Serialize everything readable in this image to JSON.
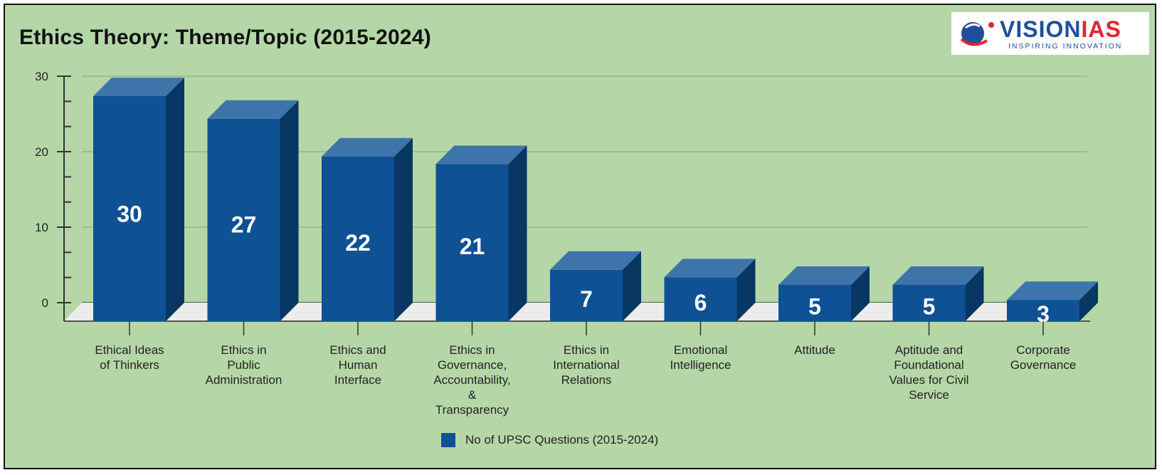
{
  "chart_data": {
    "type": "bar",
    "style": "3d-column",
    "title": "Ethics Theory: Theme/Topic (2015-2024)",
    "categories": [
      "Ethical Ideas of Thinkers",
      "Ethics in Public Administration",
      "Ethics and Human Interface",
      "Ethics in Governance, Accountability, & Transparency",
      "Ethics in International Relations",
      "Emotional Intelligence",
      "Attitude",
      "Aptitude and Foundational Values for Civil Service",
      "Corporate Governance"
    ],
    "category_lines": [
      [
        "Ethical Ideas",
        "of Thinkers"
      ],
      [
        "Ethics in",
        "Public",
        "Administration"
      ],
      [
        "Ethics and",
        "Human",
        "Interface"
      ],
      [
        "Ethics in",
        "Governance,",
        "Accountability,",
        "&",
        "Transparency"
      ],
      [
        "Ethics in",
        "International",
        "Relations"
      ],
      [
        "Emotional",
        "Intelligence"
      ],
      [
        "Attitude"
      ],
      [
        "Aptitude and",
        "Foundational",
        "Values for Civil",
        "Service"
      ],
      [
        "Corporate",
        "Governance"
      ]
    ],
    "series": [
      {
        "name": "No of UPSC Questions (2015-2024)",
        "values": [
          30,
          27,
          22,
          21,
          7,
          6,
          5,
          5,
          3
        ],
        "color": "#0e5194"
      }
    ],
    "xlabel": "",
    "ylabel": "",
    "ylim": [
      0,
      30
    ],
    "yticks": [
      0,
      10,
      20,
      30
    ],
    "grid": true,
    "legend_position": "bottom",
    "data_labels": true
  },
  "colors": {
    "background": "#b5d7a8",
    "bar_front": "#0e5194",
    "bar_top": "#3d75aa",
    "bar_side": "#083763",
    "floor": "#ececec"
  },
  "logo": {
    "brand_primary": "VISION",
    "brand_secondary": "IAS",
    "tagline": "INSPIRING INNOVATION"
  },
  "legend": {
    "label": "No of UPSC Questions (2015-2024)"
  }
}
